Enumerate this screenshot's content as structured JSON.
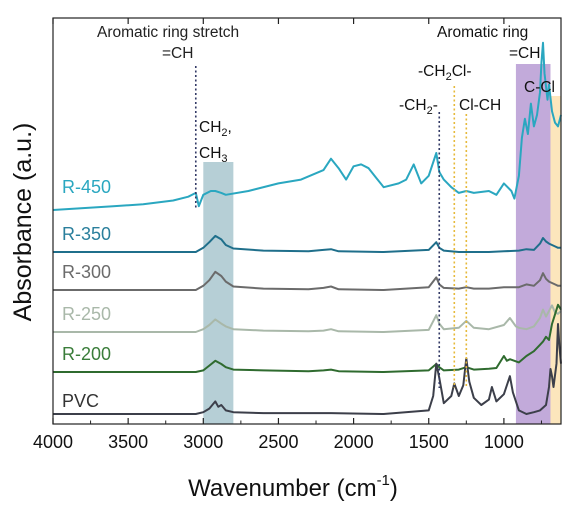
{
  "chart_data": {
    "type": "line",
    "xlabel": "Wavenumber (cm",
    "xlabel_sup": "-1",
    "xlabel_end": ")",
    "ylabel": "Absorbance (a.u.)",
    "xlim": [
      4000,
      620
    ],
    "x_reversed": true,
    "x_ticks": [
      4000,
      3500,
      3000,
      2500,
      2000,
      1500,
      1000
    ],
    "y_ticks_shown": false,
    "grid": false,
    "series": [
      {
        "name": "R-450",
        "color": "#2aa7c0",
        "label_color": "#2aa7c0",
        "x": [
          4000,
          3800,
          3600,
          3400,
          3200,
          3100,
          3050,
          3030,
          3000,
          2950,
          2920,
          2880,
          2850,
          2700,
          2500,
          2350,
          2200,
          2150,
          2100,
          2050,
          2000,
          1950,
          1900,
          1850,
          1800,
          1700,
          1650,
          1600,
          1550,
          1500,
          1450,
          1430,
          1400,
          1350,
          1300,
          1250,
          1200,
          1100,
          1050,
          1000,
          950,
          930,
          900,
          880,
          860,
          840,
          820,
          800,
          780,
          760,
          750,
          740,
          730,
          710,
          700,
          680,
          660,
          640,
          620
        ],
        "y": [
          0.0,
          0.01,
          0.02,
          0.03,
          0.05,
          0.07,
          0.09,
          0.02,
          0.08,
          0.1,
          0.1,
          0.09,
          0.08,
          0.1,
          0.14,
          0.16,
          0.21,
          0.27,
          0.22,
          0.16,
          0.23,
          0.24,
          0.22,
          0.17,
          0.12,
          0.14,
          0.16,
          0.24,
          0.14,
          0.18,
          0.3,
          0.2,
          0.16,
          0.12,
          0.09,
          0.1,
          0.09,
          0.1,
          0.08,
          0.14,
          0.1,
          0.06,
          0.18,
          0.38,
          0.48,
          0.4,
          0.56,
          0.44,
          0.5,
          0.62,
          0.78,
          0.88,
          0.72,
          0.58,
          0.66,
          0.52,
          0.46,
          0.44,
          0.5
        ]
      },
      {
        "name": "R-350",
        "color": "#1f6f8b",
        "label_color": "#2a7f9c",
        "x": [
          4000,
          3600,
          3200,
          3050,
          3000,
          2960,
          2920,
          2880,
          2850,
          2800,
          2600,
          2300,
          2200,
          2150,
          2100,
          1800,
          1500,
          1450,
          1430,
          1400,
          1300,
          1100,
          1000,
          900,
          850,
          800,
          760,
          740,
          720,
          700,
          680,
          660,
          640,
          620
        ],
        "y": [
          0.0,
          0.0,
          0.0,
          0.0,
          0.06,
          0.14,
          0.23,
          0.18,
          0.1,
          0.05,
          0.02,
          0.01,
          0.03,
          0.04,
          0.01,
          0.0,
          0.03,
          0.14,
          0.06,
          0.02,
          0.0,
          0.0,
          0.01,
          0.02,
          0.04,
          0.03,
          0.12,
          0.2,
          0.15,
          0.12,
          0.1,
          0.08,
          0.06,
          0.06
        ]
      },
      {
        "name": "R-300",
        "color": "#6b6b6b",
        "label_color": "#6b6b6b",
        "x": [
          4000,
          3600,
          3200,
          3050,
          3000,
          2960,
          2920,
          2880,
          2850,
          2800,
          2600,
          2300,
          2200,
          2150,
          2100,
          1800,
          1500,
          1450,
          1430,
          1400,
          1300,
          1250,
          1200,
          1100,
          1000,
          900,
          850,
          800,
          760,
          740,
          720,
          700,
          680,
          660,
          640,
          620
        ],
        "y": [
          0.0,
          0.0,
          0.0,
          0.0,
          0.06,
          0.14,
          0.26,
          0.2,
          0.12,
          0.05,
          0.02,
          0.01,
          0.03,
          0.05,
          0.01,
          0.0,
          0.04,
          0.18,
          0.08,
          0.03,
          0.02,
          0.04,
          0.02,
          0.02,
          0.04,
          0.04,
          0.08,
          0.06,
          0.14,
          0.24,
          0.16,
          0.12,
          0.1,
          0.08,
          0.06,
          0.06
        ]
      },
      {
        "name": "R-250",
        "color": "#a9b8a9",
        "label_color": "#a9b8a9",
        "x": [
          4000,
          3600,
          3200,
          3050,
          3000,
          2960,
          2920,
          2880,
          2850,
          2800,
          2600,
          2300,
          2200,
          2150,
          2100,
          1800,
          1500,
          1450,
          1430,
          1400,
          1300,
          1250,
          1200,
          1100,
          1000,
          960,
          920,
          900,
          850,
          800,
          760,
          740,
          720,
          700,
          680,
          660,
          640,
          620
        ],
        "y": [
          0.0,
          0.0,
          0.0,
          0.0,
          0.04,
          0.1,
          0.18,
          0.12,
          0.08,
          0.04,
          0.02,
          0.01,
          0.02,
          0.04,
          0.01,
          0.0,
          0.03,
          0.24,
          0.12,
          0.04,
          0.06,
          0.16,
          0.06,
          0.04,
          0.1,
          0.2,
          0.08,
          0.06,
          0.04,
          0.08,
          0.2,
          0.32,
          0.22,
          0.3,
          0.38,
          0.28,
          0.26,
          0.3
        ]
      },
      {
        "name": "R-200",
        "color": "#2f6b2f",
        "label_color": "#3a7d3a",
        "x": [
          4000,
          3600,
          3200,
          3050,
          3000,
          2960,
          2920,
          2880,
          2850,
          2800,
          2600,
          2300,
          2200,
          2150,
          2100,
          1800,
          1500,
          1450,
          1430,
          1400,
          1300,
          1250,
          1200,
          1100,
          1050,
          1000,
          980,
          960,
          900,
          850,
          800,
          760,
          740,
          720,
          700,
          680,
          660,
          640,
          620
        ],
        "y": [
          0.0,
          0.0,
          0.0,
          0.0,
          0.02,
          0.08,
          0.14,
          0.1,
          0.06,
          0.03,
          0.02,
          0.01,
          0.02,
          0.03,
          0.01,
          0.0,
          0.02,
          0.1,
          0.06,
          0.02,
          0.03,
          0.06,
          0.03,
          0.04,
          0.05,
          0.2,
          0.14,
          0.16,
          0.12,
          0.2,
          0.26,
          0.34,
          0.38,
          0.44,
          0.4,
          0.6,
          0.72,
          0.84,
          0.78
        ]
      },
      {
        "name": "PVC",
        "color": "#3c3f4a",
        "label_color": "#333333",
        "x": [
          4000,
          3600,
          3200,
          3050,
          3000,
          2960,
          2920,
          2900,
          2880,
          2850,
          2800,
          2600,
          2300,
          2150,
          1800,
          1500,
          1470,
          1450,
          1430,
          1400,
          1350,
          1330,
          1300,
          1270,
          1250,
          1230,
          1200,
          1150,
          1100,
          1080,
          1050,
          1000,
          960,
          940,
          900,
          850,
          800,
          760,
          720,
          700,
          690,
          680,
          670,
          650,
          640,
          630,
          620
        ],
        "y": [
          0.0,
          0.0,
          0.0,
          0.0,
          0.02,
          0.06,
          0.14,
          0.08,
          0.1,
          0.04,
          0.02,
          0.01,
          0.01,
          0.01,
          0.0,
          0.04,
          0.2,
          0.56,
          0.4,
          0.12,
          0.2,
          0.34,
          0.2,
          0.32,
          0.62,
          0.36,
          0.18,
          0.1,
          0.16,
          0.3,
          0.14,
          0.22,
          0.42,
          0.24,
          0.04,
          0.0,
          0.02,
          0.04,
          0.1,
          0.3,
          0.5,
          0.42,
          0.3,
          0.56,
          1.0,
          0.74,
          0.56
        ]
      }
    ],
    "bands": [
      {
        "from": 3000,
        "to": 2800,
        "color": "#a9c7cf"
      },
      {
        "from": 920,
        "to": 690,
        "color": "#b79bd3"
      },
      {
        "from": 690,
        "to": 620,
        "color": "#fbe2b0"
      }
    ],
    "reference_lines": [
      {
        "x": 3050,
        "color": "#333a66",
        "style": "dotted"
      },
      {
        "x": 1430,
        "color": "#333a66",
        "style": "dotted"
      },
      {
        "x": 1330,
        "color": "#e6b93a",
        "style": "dotted"
      },
      {
        "x": 1250,
        "color": "#e6b93a",
        "style": "dotted"
      }
    ],
    "annotations": [
      {
        "id": "aromatic-stretch-1",
        "text": "Aromatic ring stretch"
      },
      {
        "id": "aromatic-stretch-2",
        "text": "=CH"
      },
      {
        "id": "ch2-ch3-1",
        "text": "CH",
        "sub": "2",
        "suffix": ","
      },
      {
        "id": "ch2-ch3-2",
        "text": "CH",
        "sub": "3",
        "suffix": ""
      },
      {
        "id": "ch2cl-a",
        "text": "-CH",
        "sub": "2",
        "suffix": "Cl-"
      },
      {
        "id": "ch2-a",
        "text": "-CH",
        "sub": "2",
        "suffix": "-"
      },
      {
        "id": "clch",
        "text": "Cl-CH"
      },
      {
        "id": "aromatic-ring-1",
        "text": "Aromatic ring"
      },
      {
        "id": "aromatic-ring-2",
        "text": "=CH"
      },
      {
        "id": "ccl",
        "text": "C-Cl"
      }
    ]
  }
}
